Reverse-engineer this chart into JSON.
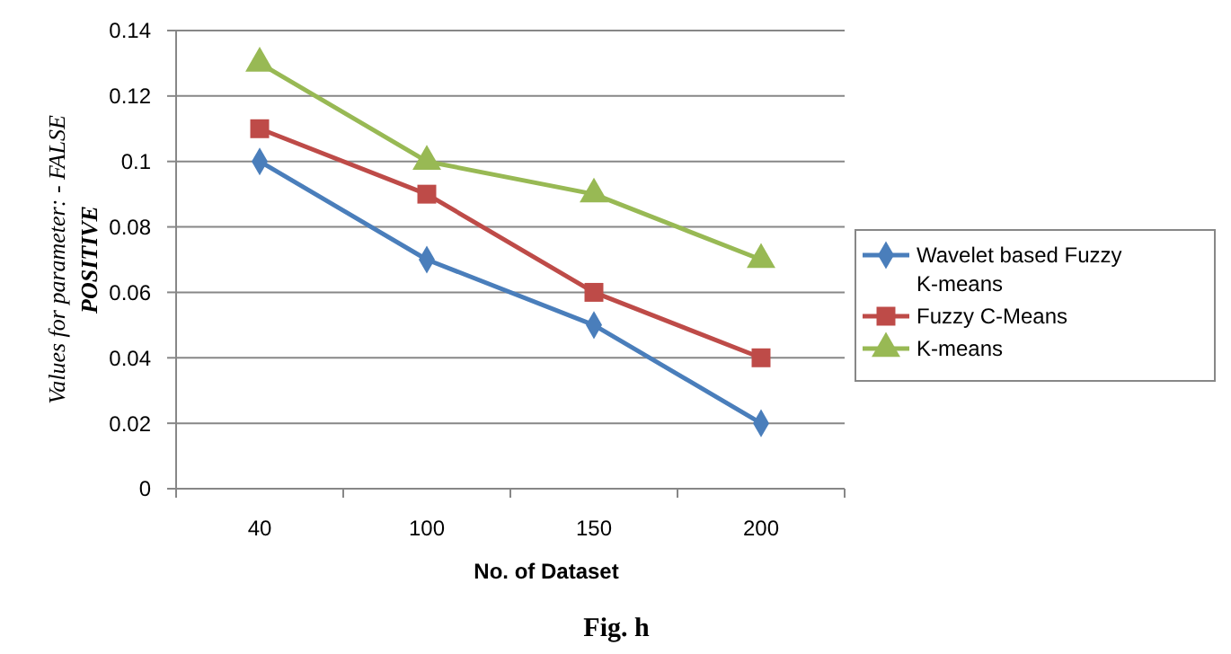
{
  "chart_data": {
    "type": "line",
    "title": "Fig. h",
    "xlabel": "No. of Dataset",
    "ylabel": "Values for parameter: - FALSE POSITIVE",
    "categories": [
      "40",
      "100",
      "150",
      "200"
    ],
    "series": [
      {
        "name": "Wavelet based Fuzzy K-means",
        "color": "#4a7ebb",
        "marker": "diamond",
        "values": [
          0.1,
          0.07,
          0.05,
          0.02
        ]
      },
      {
        "name": "Fuzzy C-Means",
        "color": "#be4b48",
        "marker": "square",
        "values": [
          0.11,
          0.09,
          0.06,
          0.04
        ]
      },
      {
        "name": "K-means",
        "color": "#98b954",
        "marker": "triangle",
        "values": [
          0.13,
          0.1,
          0.09,
          0.07
        ]
      }
    ],
    "ylim": [
      0,
      0.14
    ],
    "yticks": [
      0,
      0.02,
      0.04,
      0.06,
      0.08,
      0.1,
      0.12,
      0.14
    ],
    "grid": "y",
    "legend": "right"
  }
}
